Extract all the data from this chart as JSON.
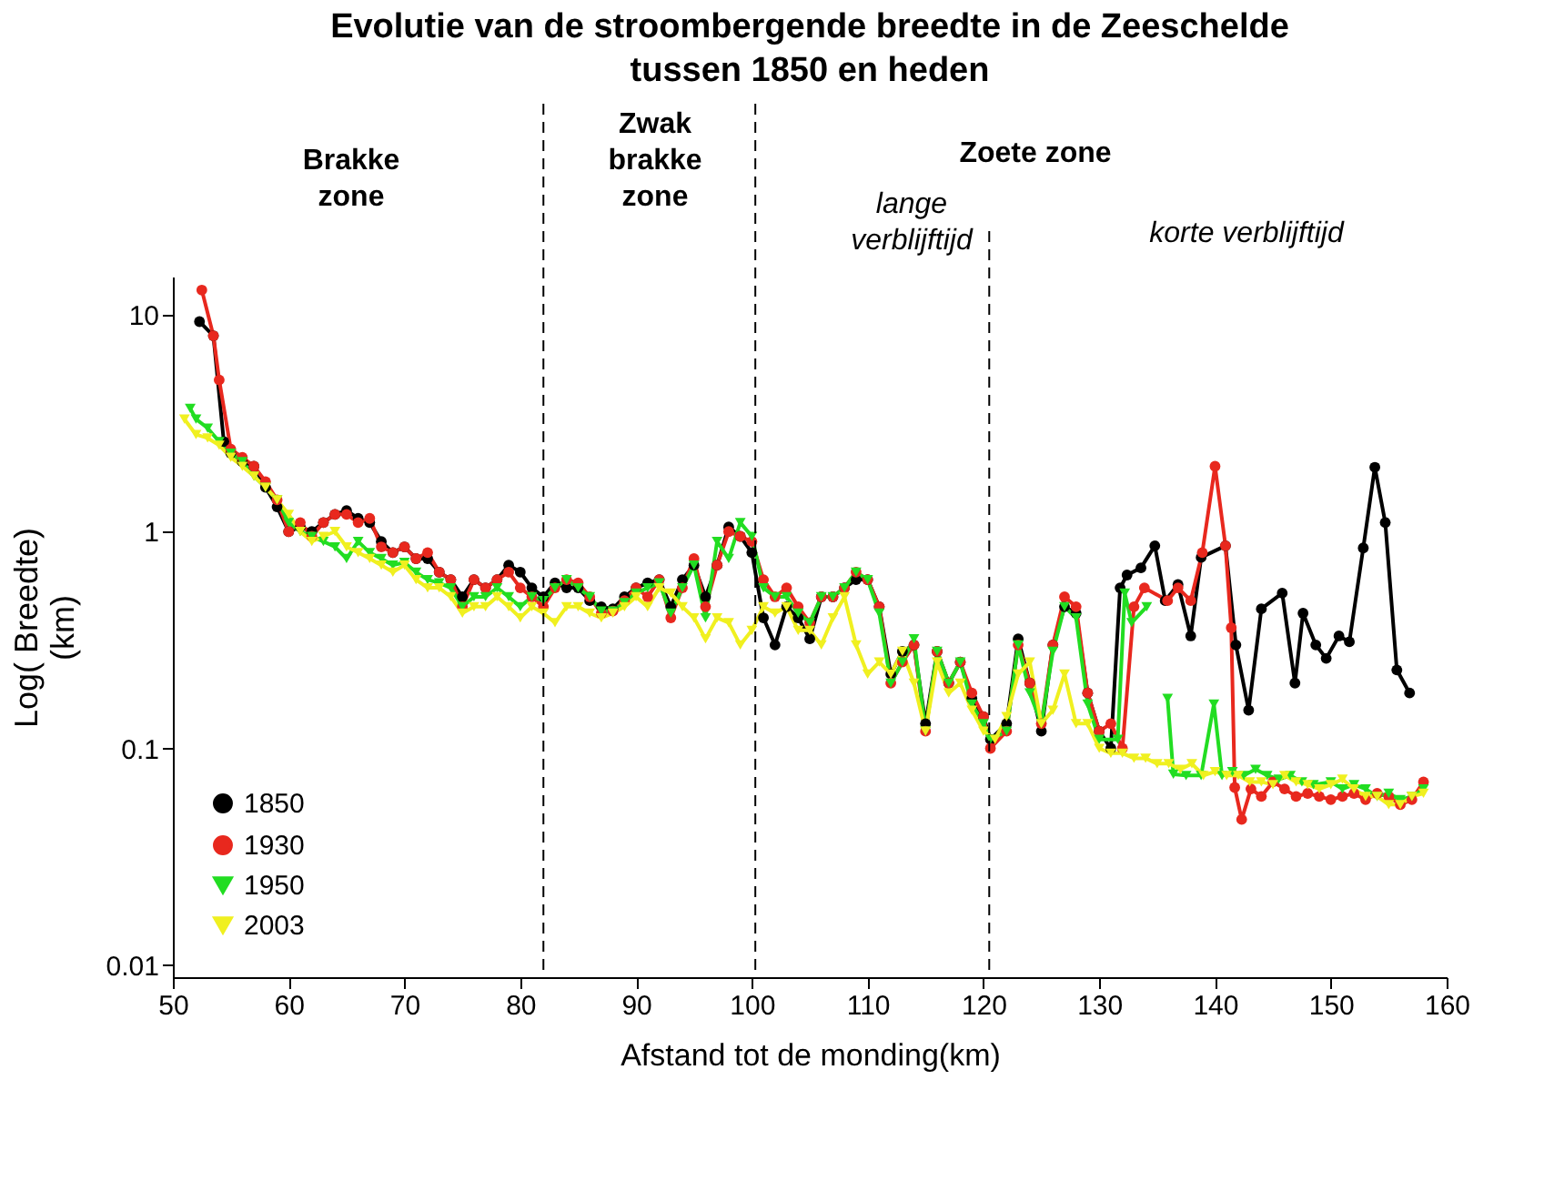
{
  "chart_data": {
    "type": "line",
    "title": "Evolutie van de stroombergende breedte in de Zeeschelde\ntussen 1850 en heden",
    "xlabel": "Afstand tot de monding(km)",
    "ylabel": "Log( Breedte)\n(km)",
    "log": "y",
    "xlim": [
      50,
      160
    ],
    "xticks": [
      50,
      60,
      70,
      80,
      90,
      100,
      110,
      120,
      130,
      140,
      150,
      160
    ],
    "ylim": [
      0.0088,
      15
    ],
    "yticks": [
      0.01,
      0.1,
      1,
      10
    ],
    "grid": false,
    "legend": "bottom left",
    "line_style": "solid",
    "annotations": [
      "Brakke\nzone",
      "Zwak\nbrakke\nzone",
      "Zoete zone",
      "lange\nverblijftijd",
      "korte verblijftijd"
    ],
    "ref_lines": [
      {
        "axis": "x",
        "value": 82,
        "label": null,
        "color": "#000000",
        "line_style": "dashed"
      },
      {
        "axis": "x",
        "value": 100.3,
        "label": null,
        "color": "#000000",
        "line_style": "dashed"
      },
      {
        "axis": "x",
        "value": 120.5,
        "label": null,
        "color": "#000000",
        "line_style": "dashed"
      }
    ],
    "series": [
      {
        "name": "1850",
        "color": "#000000",
        "marker": "circle",
        "x": [
          52.3,
          53.5,
          54.4,
          55,
          56,
          57,
          58,
          59,
          60,
          61,
          62,
          63,
          64,
          65,
          66,
          67,
          68,
          69,
          70,
          71,
          72,
          73,
          74,
          75,
          76,
          77,
          78,
          79,
          80,
          81,
          82,
          83,
          84,
          85,
          86,
          87,
          88,
          89,
          90,
          91,
          92,
          93,
          94,
          95,
          96,
          97,
          98,
          99,
          100,
          101,
          102,
          103,
          104,
          105,
          106,
          107,
          108,
          109,
          110,
          111,
          112,
          113,
          114,
          115,
          116,
          117,
          118,
          119,
          120,
          120.6,
          122,
          123,
          124,
          125,
          126,
          127,
          128,
          129,
          130,
          131,
          131.8,
          132.4,
          133.6,
          134.8,
          135.7,
          136.8,
          137.9,
          138.8,
          140.9,
          141.8,
          142.9,
          144,
          145.8,
          146.9,
          147.6,
          148.7,
          149.6,
          150.7,
          151.6,
          152.8,
          153.8,
          154.7,
          155.7,
          156.8
        ],
        "values": [
          9.3,
          8,
          2.6,
          2.3,
          2.1,
          2.0,
          1.6,
          1.3,
          1.0,
          1.05,
          1.0,
          1.1,
          1.2,
          1.25,
          1.15,
          1.1,
          0.9,
          0.8,
          0.85,
          0.75,
          0.75,
          0.65,
          0.6,
          0.5,
          0.6,
          0.55,
          0.6,
          0.7,
          0.65,
          0.55,
          0.5,
          0.58,
          0.55,
          0.55,
          0.48,
          0.45,
          0.44,
          0.5,
          0.55,
          0.58,
          0.6,
          0.45,
          0.6,
          0.7,
          0.5,
          0.7,
          1.05,
          0.95,
          0.8,
          0.4,
          0.3,
          0.45,
          0.4,
          0.32,
          0.5,
          0.5,
          0.55,
          0.6,
          0.6,
          0.45,
          0.22,
          0.28,
          0.3,
          0.13,
          0.28,
          0.2,
          0.25,
          0.17,
          0.14,
          0.11,
          0.13,
          0.32,
          0.2,
          0.12,
          0.3,
          0.45,
          0.42,
          0.18,
          0.12,
          0.1,
          0.55,
          0.63,
          0.68,
          0.86,
          0.48,
          0.57,
          0.33,
          0.76,
          0.86,
          0.3,
          0.15,
          0.44,
          0.52,
          0.2,
          0.42,
          0.3,
          0.26,
          0.33,
          0.31,
          0.84,
          1.98,
          1.1,
          0.23,
          0.18
        ]
      },
      {
        "name": "1930",
        "color": "#e8281e",
        "marker": "circle",
        "x": [
          52.5,
          53.5,
          54,
          55,
          56,
          57,
          58,
          59,
          60,
          61,
          62,
          63,
          64,
          65,
          66,
          67,
          68,
          69,
          70,
          71,
          72,
          73,
          74,
          75,
          76,
          77,
          78,
          79,
          80,
          81,
          82,
          83,
          84,
          85,
          86,
          87,
          88,
          89,
          90,
          91,
          92,
          93,
          94,
          95,
          96,
          97,
          98,
          99,
          100,
          101,
          102,
          103,
          104,
          105,
          106,
          107,
          108,
          109,
          110,
          111,
          112,
          113,
          114,
          115,
          116,
          117,
          118,
          119,
          120,
          120.6,
          122,
          123,
          124,
          125,
          126,
          127,
          128,
          129,
          130,
          131,
          132,
          133,
          133.9,
          135.9,
          136.8,
          137.9,
          138.9,
          140,
          140.9,
          141.4,
          141.7,
          142.3,
          143.1,
          144,
          145,
          146,
          147,
          148,
          149,
          150,
          151,
          152,
          153,
          154,
          155,
          156,
          157,
          158
        ],
        "values": [
          13,
          8,
          5,
          2.4,
          2.2,
          2.0,
          1.7,
          1.4,
          1.0,
          1.1,
          0.95,
          1.1,
          1.2,
          1.2,
          1.1,
          1.15,
          0.85,
          0.8,
          0.85,
          0.75,
          0.8,
          0.65,
          0.6,
          0.45,
          0.6,
          0.55,
          0.6,
          0.65,
          0.55,
          0.5,
          0.45,
          0.55,
          0.6,
          0.58,
          0.5,
          0.42,
          0.43,
          0.48,
          0.55,
          0.5,
          0.6,
          0.4,
          0.55,
          0.75,
          0.45,
          0.7,
          1.0,
          0.95,
          0.9,
          0.6,
          0.5,
          0.55,
          0.45,
          0.38,
          0.5,
          0.5,
          0.55,
          0.65,
          0.6,
          0.45,
          0.2,
          0.25,
          0.3,
          0.12,
          0.28,
          0.2,
          0.25,
          0.18,
          0.14,
          0.1,
          0.12,
          0.3,
          0.2,
          0.13,
          0.3,
          0.5,
          0.45,
          0.18,
          0.12,
          0.13,
          0.1,
          0.45,
          0.55,
          0.48,
          0.55,
          0.48,
          0.8,
          2.0,
          0.86,
          0.36,
          0.066,
          0.047,
          0.065,
          0.06,
          0.07,
          0.065,
          0.06,
          0.062,
          0.06,
          0.058,
          0.06,
          0.062,
          0.058,
          0.062,
          0.06,
          0.055,
          0.058,
          0.07
        ]
      },
      {
        "name": "1950",
        "color": "#22dd22",
        "marker": "triangle",
        "x": [
          51.5,
          52,
          53,
          54,
          55,
          56,
          57,
          58,
          59,
          60,
          61,
          62,
          63,
          64,
          65,
          66,
          67,
          68,
          69,
          70,
          71,
          72,
          73,
          74,
          75,
          76,
          77,
          78,
          79,
          80,
          81,
          82,
          83,
          84,
          85,
          86,
          87,
          88,
          89,
          90,
          91,
          92,
          93,
          94,
          95,
          96,
          97,
          98,
          99,
          100,
          101,
          102,
          103,
          104,
          105,
          106,
          107,
          108,
          109,
          110,
          111,
          112,
          113,
          114,
          115,
          116,
          117,
          118,
          119,
          120,
          120.6,
          122,
          123,
          124,
          125,
          126,
          127,
          128,
          129,
          130,
          131.6,
          132.2,
          132.8,
          134.1,
          135,
          135.9,
          136.4,
          137.5,
          138.8,
          139.9,
          140.6,
          141.5,
          142.5,
          143.5,
          144.5,
          145.5,
          146.5,
          147.5,
          148.5,
          150,
          151,
          152,
          153,
          154,
          155,
          156,
          157,
          158
        ],
        "values": [
          3.7,
          3.3,
          3.0,
          2.6,
          2.3,
          2.1,
          1.8,
          1.6,
          1.4,
          1.1,
          1.0,
          0.95,
          0.9,
          0.85,
          0.75,
          0.9,
          0.8,
          0.75,
          0.7,
          0.72,
          0.65,
          0.6,
          0.58,
          0.55,
          0.45,
          0.5,
          0.5,
          0.55,
          0.5,
          0.45,
          0.5,
          0.48,
          0.55,
          0.6,
          0.55,
          0.5,
          0.43,
          0.43,
          0.47,
          0.52,
          0.55,
          0.58,
          0.42,
          0.55,
          0.7,
          0.4,
          0.9,
          0.75,
          1.1,
          0.95,
          0.55,
          0.5,
          0.5,
          0.42,
          0.38,
          0.5,
          0.5,
          0.55,
          0.65,
          0.6,
          0.42,
          0.2,
          0.25,
          0.32,
          0.12,
          0.28,
          0.2,
          0.25,
          0.16,
          0.13,
          0.11,
          0.12,
          0.3,
          0.18,
          0.13,
          0.28,
          0.45,
          0.4,
          0.16,
          0.11,
          0.11,
          0.52,
          0.38,
          0.45,
          null,
          0.17,
          0.076,
          0.075,
          0.075,
          0.16,
          0.075,
          0.078,
          0.075,
          0.08,
          0.075,
          0.072,
          0.075,
          0.07,
          0.068,
          0.07,
          0.065,
          0.068,
          0.065,
          0.06,
          0.062,
          0.058,
          0.06,
          0.065
        ]
      },
      {
        "name": "2003",
        "color": "#f0f020",
        "marker": "triangle",
        "x": [
          51,
          52,
          53,
          54,
          55,
          56,
          57,
          58,
          59,
          60,
          61,
          62,
          63,
          64,
          65,
          66,
          67,
          68,
          69,
          70,
          71,
          72,
          73,
          74,
          75,
          76,
          77,
          78,
          79,
          80,
          81,
          82,
          83,
          84,
          85,
          86,
          87,
          88,
          89,
          90,
          91,
          92,
          93,
          94,
          95,
          96,
          97,
          98,
          99,
          100,
          101,
          102,
          103,
          104,
          105,
          106,
          107,
          108,
          109,
          110,
          111,
          112,
          113,
          114,
          115,
          116,
          117,
          118,
          119,
          120,
          121,
          122,
          123,
          124,
          125,
          126,
          127,
          128,
          129,
          130,
          131,
          132,
          133,
          134,
          135,
          136,
          137,
          138,
          139,
          140,
          141,
          142,
          143,
          144,
          145,
          146,
          147,
          148,
          149,
          150,
          151,
          152,
          153,
          154,
          155,
          156,
          157,
          158
        ],
        "values": [
          3.3,
          2.8,
          2.7,
          2.5,
          2.2,
          2.0,
          1.8,
          1.6,
          1.4,
          1.2,
          1.0,
          0.9,
          0.95,
          1.0,
          0.85,
          0.8,
          0.75,
          0.7,
          0.65,
          0.7,
          0.6,
          0.55,
          0.55,
          0.5,
          0.42,
          0.45,
          0.45,
          0.5,
          0.45,
          0.4,
          0.45,
          0.42,
          0.38,
          0.45,
          0.45,
          0.42,
          0.4,
          0.42,
          0.45,
          0.5,
          0.45,
          0.55,
          0.52,
          0.45,
          0.4,
          0.32,
          0.4,
          0.38,
          0.3,
          0.35,
          0.45,
          0.42,
          0.45,
          0.35,
          0.35,
          0.3,
          0.4,
          0.5,
          0.3,
          0.22,
          0.25,
          0.22,
          0.28,
          0.2,
          0.12,
          0.25,
          0.18,
          0.2,
          0.15,
          0.12,
          0.11,
          0.14,
          0.22,
          0.25,
          0.13,
          0.15,
          0.22,
          0.13,
          0.13,
          0.1,
          0.095,
          0.095,
          0.09,
          0.09,
          0.085,
          0.085,
          0.08,
          0.085,
          0.075,
          0.078,
          0.075,
          0.075,
          0.07,
          0.07,
          0.068,
          0.075,
          0.07,
          0.068,
          0.065,
          0.068,
          0.072,
          0.065,
          0.06,
          0.06,
          0.055,
          0.055,
          0.06,
          0.062
        ]
      }
    ]
  }
}
